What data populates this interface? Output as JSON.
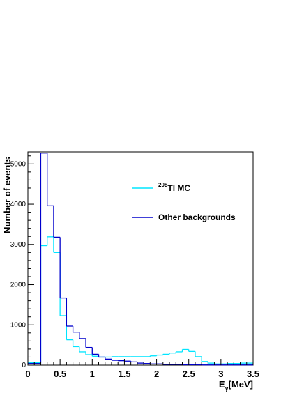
{
  "chart_data": {
    "type": "line",
    "render": "step-histogram",
    "xlabel_main": "E",
    "xlabel_sub": "γ",
    "xlabel_rest": "[MeV]",
    "ylabel": "Number of events",
    "xlim": [
      0,
      3.5
    ],
    "ylim": [
      0,
      5300
    ],
    "x_ticks": [
      {
        "value": 0,
        "label": "0"
      },
      {
        "value": 0.5,
        "label": "0.5"
      },
      {
        "value": 1,
        "label": "1"
      },
      {
        "value": 1.5,
        "label": "1.5"
      },
      {
        "value": 2,
        "label": "2"
      },
      {
        "value": 2.5,
        "label": "2.5"
      },
      {
        "value": 3,
        "label": "3"
      },
      {
        "value": 3.5,
        "label": "3.5"
      }
    ],
    "y_ticks": [
      {
        "value": 0,
        "label": "0"
      },
      {
        "value": 1000,
        "label": "1000"
      },
      {
        "value": 2000,
        "label": "2000"
      },
      {
        "value": 3000,
        "label": "3000"
      },
      {
        "value": 4000,
        "label": "4000"
      },
      {
        "value": 5000,
        "label": "5000"
      }
    ],
    "bin_edges": [
      0,
      0.1,
      0.2,
      0.3,
      0.4,
      0.5,
      0.6,
      0.7,
      0.8,
      0.9,
      1.0,
      1.1,
      1.2,
      1.3,
      1.4,
      1.5,
      1.6,
      1.7,
      1.8,
      1.9,
      2.0,
      2.1,
      2.2,
      2.3,
      2.4,
      2.5,
      2.6,
      2.7,
      2.8,
      2.9,
      3.0,
      3.1,
      3.2,
      3.3,
      3.4,
      3.5
    ],
    "series": [
      {
        "name_sup": "208",
        "name_text": "Tl MC",
        "color": "#00e5ff",
        "values": [
          60,
          60,
          2970,
          3190,
          2800,
          1230,
          630,
          460,
          330,
          260,
          220,
          200,
          200,
          210,
          210,
          210,
          210,
          210,
          210,
          230,
          250,
          270,
          300,
          330,
          390,
          340,
          210,
          90,
          50,
          30,
          30,
          40,
          40,
          50,
          50
        ]
      },
      {
        "name": "Other backgrounds",
        "color": "#0000cc",
        "values": [
          40,
          40,
          5270,
          3960,
          3180,
          1670,
          970,
          820,
          660,
          440,
          270,
          200,
          150,
          120,
          110,
          100,
          80,
          50,
          40,
          30,
          30,
          20,
          20,
          20,
          10,
          10,
          10,
          5,
          5,
          5,
          5,
          5,
          5,
          5,
          5
        ]
      }
    ],
    "legend_placement": "upper-right",
    "grid": false
  }
}
